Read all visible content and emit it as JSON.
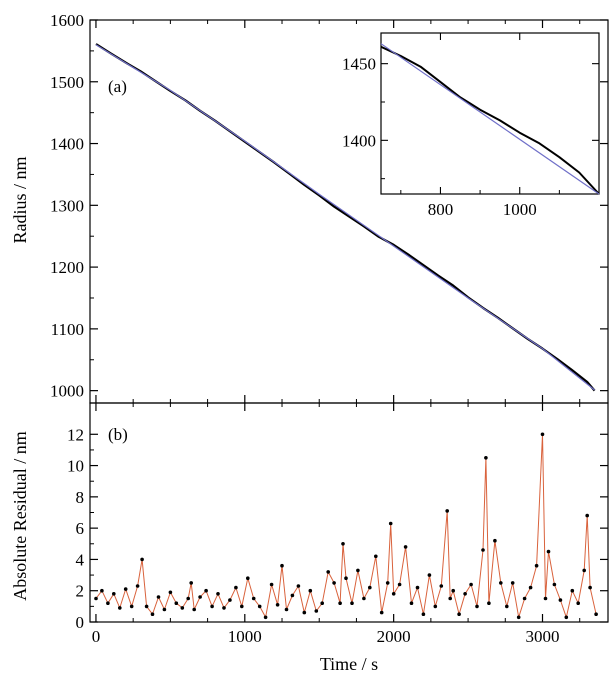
{
  "chart_data": [
    {
      "panel": "(a)",
      "type": "scatter",
      "ylabel": "Radius / nm",
      "xlim": [
        -40,
        3440
      ],
      "ylim": [
        980,
        1600
      ],
      "xticks": [
        0,
        1000,
        2000,
        3000
      ],
      "yticks": [
        1000,
        1100,
        1200,
        1300,
        1400,
        1500,
        1600
      ],
      "series": [
        {
          "role": "measured",
          "color": "#000000",
          "x": [
            0,
            100,
            200,
            300,
            400,
            500,
            600,
            700,
            800,
            900,
            1000,
            1100,
            1200,
            1300,
            1400,
            1500,
            1600,
            1700,
            1800,
            1900,
            2000,
            2100,
            2200,
            2300,
            2400,
            2500,
            2600,
            2700,
            2800,
            2900,
            3000,
            3100,
            3200,
            3300,
            3350
          ],
          "y": [
            1561,
            1546,
            1531,
            1517,
            1501,
            1485,
            1470,
            1453,
            1437,
            1420,
            1403,
            1386,
            1369,
            1351,
            1333,
            1316,
            1298,
            1282,
            1266,
            1249,
            1236,
            1220,
            1203,
            1186,
            1170,
            1151,
            1134,
            1118,
            1101,
            1084,
            1068,
            1051,
            1033,
            1014,
            1000
          ]
        },
        {
          "role": "fit",
          "color": "#6f6fc8",
          "x": [
            0,
            500,
            1000,
            1500,
            2000,
            2500,
            3000,
            3350
          ],
          "y": [
            1560,
            1486,
            1404,
            1318,
            1234,
            1150,
            1068,
            1001
          ]
        }
      ],
      "inset": {
        "xlim": [
          650,
          1200
        ],
        "ylim": [
          1365,
          1470
        ],
        "xticks": [
          800,
          1000
        ],
        "yticks": [
          1400,
          1450
        ],
        "series": [
          {
            "role": "measured",
            "color": "#000000",
            "x": [
              650,
              700,
              750,
              800,
              850,
              875,
              900,
              950,
              1000,
              1050,
              1100,
              1150,
              1200
            ],
            "y": [
              1461,
              1455,
              1448,
              1438,
              1428,
              1424,
              1420,
              1413,
              1405,
              1398,
              1389,
              1379,
              1365
            ]
          },
          {
            "role": "fit",
            "color": "#6f6fc8",
            "x": [
              650,
              1200
            ],
            "y": [
              1463,
              1365
            ]
          }
        ]
      }
    },
    {
      "panel": "(b)",
      "type": "line",
      "xlabel": "Time / s",
      "ylabel": "Absolute Residual / nm",
      "xlim": [
        -40,
        3440
      ],
      "ylim": [
        0,
        14
      ],
      "xticks": [
        0,
        1000,
        2000,
        3000
      ],
      "yticks": [
        0,
        2,
        4,
        6,
        8,
        10,
        12
      ],
      "series": [
        {
          "role": "residual",
          "color": "#000000",
          "line_color": "#d9623c",
          "x": [
            0,
            40,
            80,
            120,
            160,
            200,
            240,
            280,
            310,
            340,
            380,
            420,
            460,
            500,
            540,
            580,
            620,
            640,
            660,
            700,
            740,
            780,
            820,
            860,
            900,
            940,
            980,
            1020,
            1060,
            1100,
            1140,
            1180,
            1220,
            1250,
            1280,
            1320,
            1360,
            1400,
            1440,
            1480,
            1520,
            1560,
            1600,
            1640,
            1660,
            1680,
            1720,
            1760,
            1800,
            1840,
            1880,
            1920,
            1960,
            1980,
            2000,
            2040,
            2080,
            2120,
            2160,
            2200,
            2240,
            2280,
            2320,
            2360,
            2380,
            2400,
            2440,
            2480,
            2520,
            2560,
            2600,
            2620,
            2640,
            2680,
            2720,
            2760,
            2800,
            2840,
            2880,
            2920,
            2960,
            3000,
            3020,
            3040,
            3080,
            3120,
            3160,
            3200,
            3240,
            3280,
            3300,
            3320,
            3360
          ],
          "y": [
            1.5,
            2.0,
            1.2,
            1.8,
            0.9,
            2.1,
            1.0,
            2.3,
            4.0,
            1.0,
            0.5,
            1.6,
            0.8,
            1.9,
            1.2,
            0.9,
            1.5,
            2.5,
            0.8,
            1.6,
            2.0,
            1.0,
            1.8,
            0.9,
            1.4,
            2.2,
            1.0,
            2.8,
            1.5,
            1.0,
            0.3,
            2.4,
            1.1,
            3.6,
            0.8,
            1.7,
            2.3,
            0.6,
            2.0,
            0.7,
            1.2,
            3.2,
            2.5,
            1.2,
            5.0,
            2.8,
            1.2,
            3.3,
            1.5,
            2.2,
            4.2,
            0.6,
            2.5,
            6.3,
            1.8,
            2.4,
            4.8,
            1.2,
            2.2,
            0.5,
            3.0,
            1.0,
            2.3,
            7.1,
            1.5,
            2.0,
            0.5,
            1.8,
            2.4,
            1.0,
            4.6,
            10.5,
            1.2,
            5.2,
            2.5,
            1.0,
            2.5,
            0.3,
            1.5,
            2.2,
            3.6,
            12.0,
            1.5,
            4.5,
            2.4,
            1.4,
            0.3,
            2.0,
            1.2,
            3.3,
            6.8,
            2.2,
            0.5
          ]
        }
      ]
    }
  ]
}
